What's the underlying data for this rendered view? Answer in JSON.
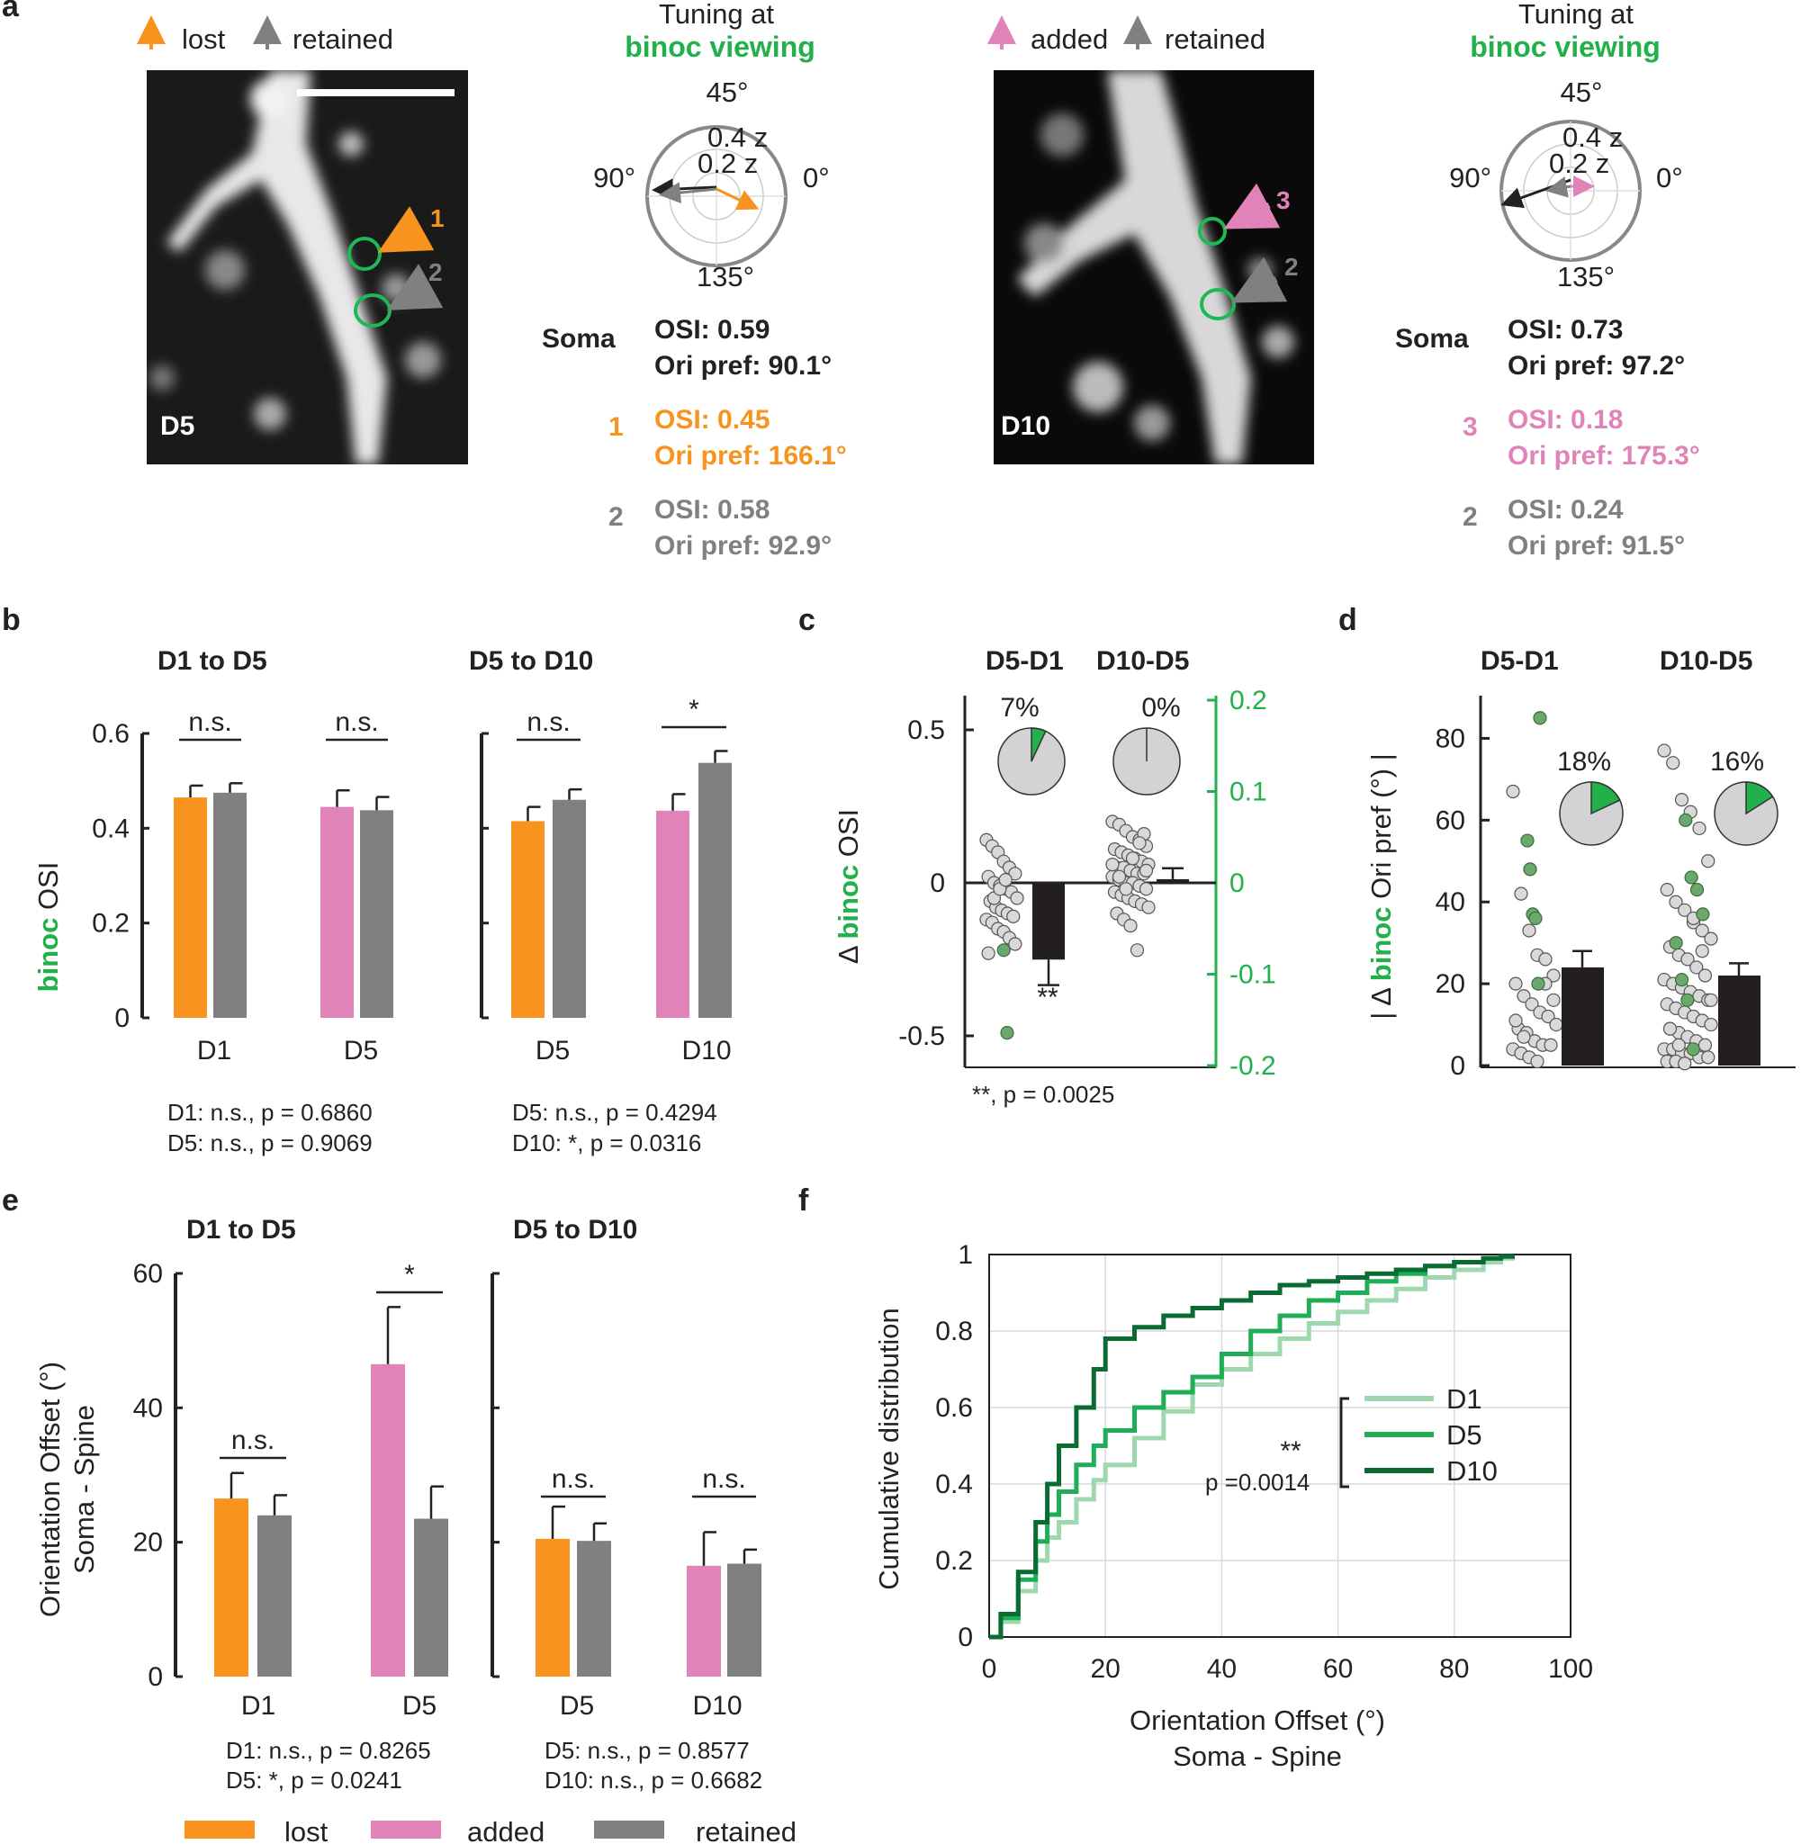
{
  "colors": {
    "lost": "#F7931E",
    "added": "#E083B8",
    "retained": "#808080",
    "binoc": "#22B04B",
    "dark": "#231F20",
    "greenDot": "#6BA86B",
    "greyDot": "#D9D9D9",
    "cdf_D1": "#9ED8AE",
    "cdf_D5": "#1FAE55",
    "cdf_D10": "#0A6B33"
  },
  "panel_labels": {
    "a": "a",
    "b": "b",
    "c": "c",
    "d": "d",
    "e": "e",
    "f": "f"
  },
  "panel_a": {
    "left": {
      "legend": {
        "first": "lost",
        "second": "retained"
      },
      "image_label": "D5",
      "spine_labels": [
        "1",
        "2"
      ],
      "polar_title_line1": "Tuning at",
      "polar_title_line2": "binoc viewing",
      "angles": {
        "top": "45°",
        "left": "90°",
        "right": "0°",
        "bottom": "135°"
      },
      "rings": {
        "outer": "0.4 z",
        "inner": "0.2 z"
      },
      "soma_label": "Soma",
      "soma_osi": "OSI: 0.59",
      "soma_ori": "Ori pref: 90.1°",
      "spine1_num": "1",
      "spine1_osi": "OSI: 0.45",
      "spine1_ori": "Ori pref: 166.1°",
      "spine2_num": "2",
      "spine2_osi": "OSI: 0.58",
      "spine2_ori": "Ori pref: 92.9°"
    },
    "right": {
      "legend": {
        "first": "added",
        "second": "retained"
      },
      "image_label": "D10",
      "spine_labels": [
        "3",
        "2"
      ],
      "polar_title_line1": "Tuning at",
      "polar_title_line2": "binoc viewing",
      "angles": {
        "top": "45°",
        "left": "90°",
        "right": "0°",
        "bottom": "135°"
      },
      "rings": {
        "outer": "0.4 z",
        "inner": "0.2 z"
      },
      "soma_label": "Soma",
      "soma_osi": "OSI: 0.73",
      "soma_ori": "Ori pref: 97.2°",
      "spine1_num": "3",
      "spine1_osi": "OSI: 0.18",
      "spine1_ori": "Ori pref: 175.3°",
      "spine2_num": "2",
      "spine2_osi": "OSI: 0.24",
      "spine2_ori": "Ori pref: 91.5°"
    }
  },
  "chart_data": [
    {
      "panel": "b",
      "type": "bar",
      "ylabel_colored": "binoc",
      "ylabel_rest": " OSI",
      "ylim": [
        0,
        0.6
      ],
      "yticks": [
        "0",
        "0.2",
        "0.4",
        "0.6"
      ],
      "groups": [
        {
          "title": "D1 to D5",
          "categories": [
            "D1",
            "D5"
          ],
          "bars": [
            {
              "series": "lost",
              "value": 0.465,
              "err": 0.025
            },
            {
              "series": "retained",
              "value": 0.475,
              "err": 0.02
            },
            {
              "series": "added",
              "value": 0.445,
              "err": 0.035
            },
            {
              "series": "retained",
              "value": 0.438,
              "err": 0.028
            }
          ],
          "sig": [
            "n.s.",
            "n.s."
          ],
          "stats": [
            "D1: n.s., p = 0.6860",
            "D5: n.s., p = 0.9069"
          ]
        },
        {
          "title": "D5 to D10",
          "categories": [
            "D5",
            "D10"
          ],
          "bars": [
            {
              "series": "lost",
              "value": 0.415,
              "err": 0.03
            },
            {
              "series": "retained",
              "value": 0.46,
              "err": 0.022
            },
            {
              "series": "added",
              "value": 0.437,
              "err": 0.035
            },
            {
              "series": "retained",
              "value": 0.538,
              "err": 0.025
            }
          ],
          "sig": [
            "n.s.",
            "*"
          ],
          "stats": [
            "D5: n.s., p = 0.4294",
            "D10: *, p = 0.0316"
          ]
        }
      ]
    },
    {
      "panel": "c",
      "type": "scatter",
      "titles": [
        "D5-D1",
        "D10-D5"
      ],
      "ylabel_prefix": "Δ ",
      "ylabel_colored": "binoc",
      "ylabel_rest": " OSI",
      "ylim": [
        -0.6,
        0.6
      ],
      "yticks_left": [
        "-0.5",
        "0",
        "0.5"
      ],
      "yticks_right": [
        "-0.2",
        "-0.1",
        "0",
        "0.1",
        "0.2"
      ],
      "means": [
        -0.21,
        0.01
      ],
      "errs": [
        0.07,
        0.03
      ],
      "pies": [
        "7%",
        "0%"
      ],
      "pie_fraction": [
        0.07,
        0.0
      ],
      "sig_mark": "**",
      "footnote": "**, p = 0.0025",
      "points_D5_D1": [
        0.14,
        0.12,
        0.1,
        0.07,
        0.05,
        0.03,
        0.02,
        0.0,
        -0.01,
        -0.02,
        -0.03,
        -0.05,
        -0.06,
        -0.08,
        -0.09,
        -0.1,
        -0.11,
        -0.12,
        -0.13,
        -0.15,
        -0.16,
        -0.18,
        -0.2,
        -0.23,
        -0.05,
        -0.02,
        0.01
      ],
      "green_D5_D1": [
        -0.22,
        -0.49
      ],
      "points_D10_D5": [
        0.2,
        0.19,
        0.17,
        0.15,
        0.14,
        0.12,
        0.11,
        0.1,
        0.09,
        0.08,
        0.07,
        0.06,
        0.05,
        0.05,
        0.04,
        0.03,
        0.03,
        0.02,
        0.01,
        0.0,
        0.0,
        -0.01,
        -0.02,
        -0.03,
        -0.04,
        -0.05,
        -0.06,
        -0.07,
        -0.08,
        -0.1,
        -0.12,
        -0.14,
        -0.22,
        0.16,
        0.06,
        0.02,
        -0.02,
        0.08,
        0.13,
        0.04
      ],
      "green_D10_D5": []
    },
    {
      "panel": "d",
      "type": "scatter",
      "titles": [
        "D5-D1",
        "D10-D5"
      ],
      "ylabel_prefix": "| Δ ",
      "ylabel_colored": "binoc",
      "ylabel_rest": " Ori pref (°) |",
      "ylim": [
        0,
        90
      ],
      "yticks": [
        "0",
        "20",
        "40",
        "60",
        "80"
      ],
      "means": [
        24,
        22
      ],
      "errs": [
        4,
        3
      ],
      "pies": [
        "18%",
        "16%"
      ],
      "pie_fraction": [
        0.18,
        0.16
      ],
      "points_D5_D1": [
        67,
        42,
        33,
        27,
        26,
        22,
        20,
        17,
        15,
        13,
        12,
        10,
        9,
        8,
        6,
        5,
        5,
        4,
        3,
        2,
        1,
        20,
        16,
        11,
        7
      ],
      "green_D5_D1": [
        85,
        55,
        48,
        37,
        36,
        20
      ],
      "points_D10_D5": [
        77,
        74,
        65,
        62,
        58,
        50,
        43,
        40,
        38,
        35,
        33,
        31,
        29,
        27,
        26,
        24,
        22,
        21,
        20,
        19,
        18,
        17,
        16,
        15,
        14,
        13,
        12,
        11,
        10,
        9,
        8,
        7,
        6,
        5,
        4,
        4,
        3,
        3,
        2,
        2,
        1,
        1,
        0.5,
        36,
        28,
        16,
        9,
        5
      ],
      "green_D10_D5": [
        60,
        46,
        43,
        37,
        30,
        21,
        16,
        4
      ]
    },
    {
      "panel": "e",
      "type": "bar",
      "ylabel_line1": "Orientation Offset (°)",
      "ylabel_line2": "Soma - Spine",
      "ylim": [
        0,
        60
      ],
      "yticks": [
        "0",
        "20",
        "40",
        "60"
      ],
      "groups": [
        {
          "title": "D1 to D5",
          "categories": [
            "D1",
            "D5"
          ],
          "bars": [
            {
              "series": "lost",
              "value": 26.5,
              "err": 3.8
            },
            {
              "series": "retained",
              "value": 24,
              "err": 3
            },
            {
              "series": "added",
              "value": 46.5,
              "err": 8.5
            },
            {
              "series": "retained",
              "value": 23.5,
              "err": 4.8
            }
          ],
          "sig": [
            "n.s.",
            "*"
          ],
          "stats": [
            "D1: n.s., p = 0.8265",
            "D5: *, p = 0.0241"
          ]
        },
        {
          "title": "D5 to D10",
          "categories": [
            "D5",
            "D10"
          ],
          "bars": [
            {
              "series": "lost",
              "value": 20.5,
              "err": 4.8
            },
            {
              "series": "retained",
              "value": 20.2,
              "err": 2.6
            },
            {
              "series": "added",
              "value": 16.5,
              "err": 5
            },
            {
              "series": "retained",
              "value": 16.8,
              "err": 2.1
            }
          ],
          "sig": [
            "n.s.",
            "n.s."
          ],
          "stats": [
            "D5: n.s., p = 0.8577",
            "D10: n.s., p = 0.6682"
          ]
        }
      ],
      "legend": [
        {
          "series": "lost",
          "label": "lost"
        },
        {
          "series": "added",
          "label": "added"
        },
        {
          "series": "retained",
          "label": "retained"
        }
      ]
    },
    {
      "panel": "f",
      "type": "line",
      "xlabel_line1": "Orientation Offset (°)",
      "xlabel_line2": "Soma - Spine",
      "ylabel": "Cumulative distribution",
      "xlim": [
        0,
        100
      ],
      "ylim": [
        0,
        1
      ],
      "xticks": [
        "0",
        "20",
        "40",
        "60",
        "80",
        "100"
      ],
      "yticks": [
        "0",
        "0.2",
        "0.4",
        "0.6",
        "0.8",
        "1"
      ],
      "grid": true,
      "sig_mark": "**",
      "p_text": "p =0.0014",
      "series": [
        {
          "name": "D1",
          "color_key": "cdf_D1",
          "x": [
            0,
            2,
            5,
            8,
            10,
            12,
            15,
            18,
            20,
            25,
            30,
            35,
            40,
            45,
            50,
            55,
            60,
            65,
            70,
            75,
            80,
            85,
            88,
            90
          ],
          "y": [
            0,
            0.04,
            0.12,
            0.2,
            0.26,
            0.3,
            0.36,
            0.41,
            0.45,
            0.52,
            0.59,
            0.66,
            0.7,
            0.74,
            0.78,
            0.82,
            0.85,
            0.88,
            0.91,
            0.94,
            0.96,
            0.98,
            0.99,
            1
          ]
        },
        {
          "name": "D5",
          "color_key": "cdf_D5",
          "x": [
            0,
            2,
            5,
            8,
            10,
            12,
            15,
            18,
            20,
            25,
            30,
            35,
            40,
            45,
            50,
            55,
            60,
            65,
            70,
            75,
            80,
            85,
            88,
            90
          ],
          "y": [
            0,
            0.05,
            0.15,
            0.25,
            0.32,
            0.38,
            0.45,
            0.5,
            0.54,
            0.6,
            0.64,
            0.68,
            0.74,
            0.8,
            0.84,
            0.88,
            0.9,
            0.93,
            0.95,
            0.97,
            0.98,
            0.99,
            0.995,
            1
          ]
        },
        {
          "name": "D10",
          "color_key": "cdf_D10",
          "x": [
            0,
            2,
            5,
            8,
            10,
            12,
            15,
            18,
            20,
            25,
            30,
            35,
            40,
            45,
            50,
            55,
            60,
            65,
            70,
            75,
            80,
            85,
            88,
            90
          ],
          "y": [
            0,
            0.06,
            0.17,
            0.3,
            0.4,
            0.5,
            0.6,
            0.7,
            0.78,
            0.81,
            0.84,
            0.86,
            0.88,
            0.9,
            0.92,
            0.93,
            0.94,
            0.95,
            0.96,
            0.97,
            0.98,
            0.99,
            0.995,
            1
          ]
        }
      ]
    }
  ]
}
